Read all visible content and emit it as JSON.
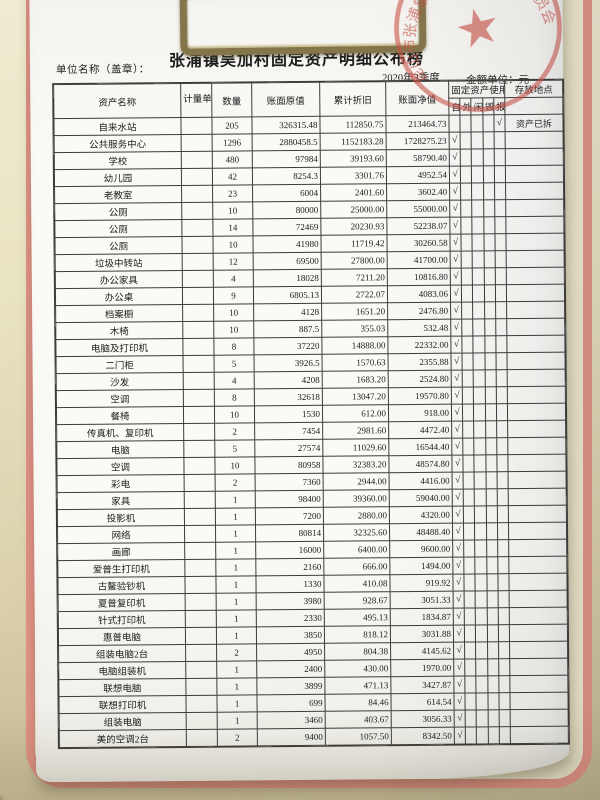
{
  "title": "张浦镇吴加村固定资产明细公布榜",
  "unit_name_label": "单位名称（盖章）：",
  "period": "2020年3季度",
  "amount_unit": "金额单位：元",
  "stamp": {
    "text": "昆山市张浦镇吴加村村务监督委员会",
    "star": "★",
    "color": "#c9544a"
  },
  "table": {
    "headers": {
      "name": "资产名称",
      "unit": "计量单位",
      "qty": "数量",
      "orig": "账面原值",
      "dep": "累计折旧",
      "net": "账面净值",
      "usage_group": "固定资产使用状况",
      "location": "存放地点"
    },
    "usage_options": [
      "自用",
      "外借",
      "闲置",
      "毁损",
      "报废"
    ],
    "check_mark": "√",
    "rows": [
      {
        "name": "自来水站",
        "qty": "205",
        "orig": "326315.48",
        "dep": "112850.75",
        "net": "213464.73",
        "usage": "报废",
        "loc": "资产已拆"
      },
      {
        "name": "公共服务中心",
        "qty": "1296",
        "orig": "2880458.5",
        "dep": "1152183.28",
        "net": "1728275.23",
        "usage": "自用",
        "loc": ""
      },
      {
        "name": "学校",
        "qty": "480",
        "orig": "97984",
        "dep": "39193.60",
        "net": "58790.40",
        "usage": "自用",
        "loc": ""
      },
      {
        "name": "幼儿园",
        "qty": "42",
        "orig": "8254.3",
        "dep": "3301.76",
        "net": "4952.54",
        "usage": "自用",
        "loc": ""
      },
      {
        "name": "老教室",
        "qty": "23",
        "orig": "6004",
        "dep": "2401.60",
        "net": "3602.40",
        "usage": "自用",
        "loc": ""
      },
      {
        "name": "公厕",
        "qty": "10",
        "orig": "80000",
        "dep": "25000.00",
        "net": "55000.00",
        "usage": "自用",
        "loc": ""
      },
      {
        "name": "公厕",
        "qty": "14",
        "orig": "72469",
        "dep": "20230.93",
        "net": "52238.07",
        "usage": "自用",
        "loc": ""
      },
      {
        "name": "公厕",
        "qty": "10",
        "orig": "41980",
        "dep": "11719.42",
        "net": "30260.58",
        "usage": "自用",
        "loc": ""
      },
      {
        "name": "垃圾中转站",
        "qty": "12",
        "orig": "69500",
        "dep": "27800.00",
        "net": "41700.00",
        "usage": "自用",
        "loc": ""
      },
      {
        "name": "办公家具",
        "qty": "4",
        "orig": "18028",
        "dep": "7211.20",
        "net": "10816.80",
        "usage": "自用",
        "loc": ""
      },
      {
        "name": "办公桌",
        "qty": "9",
        "orig": "6805.13",
        "dep": "2722.07",
        "net": "4083.06",
        "usage": "自用",
        "loc": ""
      },
      {
        "name": "档案橱",
        "qty": "10",
        "orig": "4128",
        "dep": "1651.20",
        "net": "2476.80",
        "usage": "自用",
        "loc": ""
      },
      {
        "name": "木椅",
        "qty": "10",
        "orig": "887.5",
        "dep": "355.03",
        "net": "532.48",
        "usage": "自用",
        "loc": ""
      },
      {
        "name": "电脑及打印机",
        "qty": "8",
        "orig": "37220",
        "dep": "14888.00",
        "net": "22332.00",
        "usage": "自用",
        "loc": ""
      },
      {
        "name": "二门柜",
        "qty": "5",
        "orig": "3926.5",
        "dep": "1570.63",
        "net": "2355.88",
        "usage": "自用",
        "loc": ""
      },
      {
        "name": "沙发",
        "qty": "4",
        "orig": "4208",
        "dep": "1683.20",
        "net": "2524.80",
        "usage": "自用",
        "loc": ""
      },
      {
        "name": "空调",
        "qty": "8",
        "orig": "32618",
        "dep": "13047.20",
        "net": "19570.80",
        "usage": "自用",
        "loc": ""
      },
      {
        "name": "餐椅",
        "qty": "10",
        "orig": "1530",
        "dep": "612.00",
        "net": "918.00",
        "usage": "自用",
        "loc": ""
      },
      {
        "name": "传真机、复印机",
        "qty": "2",
        "orig": "7454",
        "dep": "2981.60",
        "net": "4472.40",
        "usage": "自用",
        "loc": ""
      },
      {
        "name": "电脑",
        "qty": "5",
        "orig": "27574",
        "dep": "11029.60",
        "net": "16544.40",
        "usage": "自用",
        "loc": ""
      },
      {
        "name": "空调",
        "qty": "10",
        "orig": "80958",
        "dep": "32383.20",
        "net": "48574.80",
        "usage": "自用",
        "loc": ""
      },
      {
        "name": "彩电",
        "qty": "2",
        "orig": "7360",
        "dep": "2944.00",
        "net": "4416.00",
        "usage": "自用",
        "loc": ""
      },
      {
        "name": "家具",
        "qty": "1",
        "orig": "98400",
        "dep": "39360.00",
        "net": "59040.00",
        "usage": "自用",
        "loc": ""
      },
      {
        "name": "投影机",
        "qty": "1",
        "orig": "7200",
        "dep": "2880.00",
        "net": "4320.00",
        "usage": "自用",
        "loc": ""
      },
      {
        "name": "网络",
        "qty": "1",
        "orig": "80814",
        "dep": "32325.60",
        "net": "48488.40",
        "usage": "自用",
        "loc": ""
      },
      {
        "name": "画廊",
        "qty": "1",
        "orig": "16000",
        "dep": "6400.00",
        "net": "9600.00",
        "usage": "自用",
        "loc": ""
      },
      {
        "name": "爱普生打印机",
        "qty": "1",
        "orig": "2160",
        "dep": "666.00",
        "net": "1494.00",
        "usage": "自用",
        "loc": ""
      },
      {
        "name": "古鳌验钞机",
        "qty": "1",
        "orig": "1330",
        "dep": "410.08",
        "net": "919.92",
        "usage": "自用",
        "loc": ""
      },
      {
        "name": "夏普复印机",
        "qty": "1",
        "orig": "3980",
        "dep": "928.67",
        "net": "3051.33",
        "usage": "自用",
        "loc": ""
      },
      {
        "name": "针式打印机",
        "qty": "1",
        "orig": "2330",
        "dep": "495.13",
        "net": "1834.87",
        "usage": "自用",
        "loc": ""
      },
      {
        "name": "惠普电脑",
        "qty": "1",
        "orig": "3850",
        "dep": "818.12",
        "net": "3031.88",
        "usage": "自用",
        "loc": ""
      },
      {
        "name": "组装电脑2台",
        "qty": "2",
        "orig": "4950",
        "dep": "804.38",
        "net": "4145.62",
        "usage": "自用",
        "loc": ""
      },
      {
        "name": "电脑组装机",
        "qty": "1",
        "orig": "2400",
        "dep": "430.00",
        "net": "1970.00",
        "usage": "自用",
        "loc": ""
      },
      {
        "name": "联想电脑",
        "qty": "1",
        "orig": "3899",
        "dep": "471.13",
        "net": "3427.87",
        "usage": "自用",
        "loc": ""
      },
      {
        "name": "联想打印机",
        "qty": "1",
        "orig": "699",
        "dep": "84.46",
        "net": "614.54",
        "usage": "自用",
        "loc": ""
      },
      {
        "name": "组装电脑",
        "qty": "1",
        "orig": "3460",
        "dep": "403.67",
        "net": "3056.33",
        "usage": "自用",
        "loc": ""
      },
      {
        "name": "美的空调2台",
        "qty": "2",
        "orig": "9400",
        "dep": "1057.50",
        "net": "8342.50",
        "usage": "自用",
        "loc": ""
      }
    ]
  }
}
